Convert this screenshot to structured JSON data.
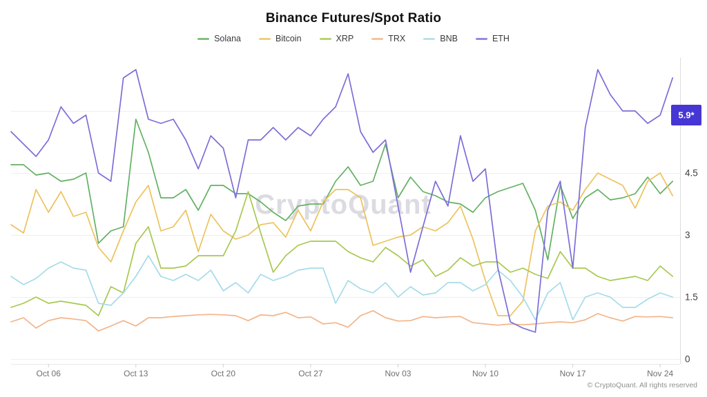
{
  "header": {
    "title": "Binance Futures/Spot Ratio"
  },
  "watermark": {
    "text": "CryptoQuant"
  },
  "footer": {
    "text": "© CryptoQuant. All rights reserved"
  },
  "y_axis": {
    "badge": {
      "label": "5.9*",
      "value": 5.9,
      "color": "#4636d4",
      "text_color": "#ffffff"
    },
    "ticks": [
      {
        "label": "4.5",
        "value": 4.5
      },
      {
        "label": "3",
        "value": 3
      },
      {
        "label": "1.5",
        "value": 1.5
      },
      {
        "label": "0",
        "value": 0
      }
    ]
  },
  "chart_data": {
    "type": "line",
    "title": "Binance Futures/Spot Ratio",
    "xlabel": "",
    "ylabel": "",
    "ylim": [
      0,
      7.35
    ],
    "grid_values": [
      0,
      1.5,
      3,
      4.5,
      6
    ],
    "legend_position": "top",
    "x": [
      "Oct 03",
      "Oct 04",
      "Oct 05",
      "Oct 06",
      "Oct 07",
      "Oct 08",
      "Oct 09",
      "Oct 10",
      "Oct 11",
      "Oct 12",
      "Oct 13",
      "Oct 14",
      "Oct 15",
      "Oct 16",
      "Oct 17",
      "Oct 18",
      "Oct 19",
      "Oct 20",
      "Oct 21",
      "Oct 22",
      "Oct 23",
      "Oct 24",
      "Oct 25",
      "Oct 26",
      "Oct 27",
      "Oct 28",
      "Oct 29",
      "Oct 30",
      "Oct 31",
      "Nov 01",
      "Nov 02",
      "Nov 03",
      "Nov 04",
      "Nov 05",
      "Nov 06",
      "Nov 07",
      "Nov 08",
      "Nov 09",
      "Nov 10",
      "Nov 11",
      "Nov 12",
      "Nov 13",
      "Nov 14",
      "Nov 15",
      "Nov 16",
      "Nov 17",
      "Nov 18",
      "Nov 19",
      "Nov 20",
      "Nov 21",
      "Nov 22",
      "Nov 23",
      "Nov 24",
      "Nov 25"
    ],
    "xticks": [
      {
        "label": "Oct 06",
        "index": 3
      },
      {
        "label": "Oct 13",
        "index": 10
      },
      {
        "label": "Oct 20",
        "index": 17
      },
      {
        "label": "Oct 27",
        "index": 24
      },
      {
        "label": "Nov 03",
        "index": 31
      },
      {
        "label": "Nov 10",
        "index": 38
      },
      {
        "label": "Nov 17",
        "index": 45
      },
      {
        "label": "Nov 24",
        "index": 52
      }
    ],
    "series": [
      {
        "name": "Solana",
        "color": "#62b062",
        "values": [
          4.7,
          4.7,
          4.45,
          4.5,
          4.3,
          4.35,
          4.5,
          2.8,
          3.1,
          3.2,
          5.8,
          5.0,
          3.9,
          3.9,
          4.1,
          3.6,
          4.2,
          4.2,
          4.0,
          4.0,
          3.8,
          3.55,
          3.35,
          3.7,
          3.75,
          3.75,
          4.3,
          4.65,
          4.2,
          4.3,
          5.2,
          3.9,
          4.4,
          4.05,
          3.95,
          3.8,
          3.75,
          3.55,
          3.9,
          4.05,
          4.15,
          4.25,
          3.6,
          2.4,
          4.2,
          3.4,
          3.9,
          4.1,
          3.85,
          3.9,
          4.0,
          4.4,
          4.0,
          4.3
        ]
      },
      {
        "name": "Bitcoin",
        "color": "#ecc25c",
        "values": [
          3.25,
          3.05,
          4.1,
          3.55,
          4.05,
          3.45,
          3.55,
          2.7,
          2.35,
          3.1,
          3.8,
          4.2,
          3.1,
          3.2,
          3.6,
          2.6,
          3.5,
          3.1,
          2.9,
          3.0,
          3.25,
          3.3,
          2.95,
          3.6,
          3.1,
          3.8,
          4.1,
          4.1,
          3.9,
          2.75,
          2.85,
          2.95,
          3.0,
          3.2,
          3.1,
          3.3,
          3.7,
          2.9,
          1.9,
          1.05,
          1.05,
          1.4,
          3.1,
          3.7,
          3.8,
          3.6,
          4.1,
          4.5,
          4.35,
          4.2,
          3.65,
          4.3,
          4.5,
          3.95
        ]
      },
      {
        "name": "XRP",
        "color": "#a6c84f",
        "values": [
          1.25,
          1.35,
          1.5,
          1.35,
          1.4,
          1.35,
          1.3,
          1.05,
          1.75,
          1.6,
          2.8,
          3.2,
          2.2,
          2.2,
          2.25,
          2.5,
          2.5,
          2.5,
          3.1,
          4.05,
          3.05,
          2.1,
          2.5,
          2.75,
          2.85,
          2.85,
          2.85,
          2.6,
          2.45,
          2.35,
          2.7,
          2.5,
          2.25,
          2.4,
          2.0,
          2.15,
          2.45,
          2.25,
          2.35,
          2.35,
          2.1,
          2.2,
          2.05,
          1.95,
          2.6,
          2.2,
          2.2,
          2.0,
          1.9,
          1.95,
          2.0,
          1.9,
          2.25,
          2.0
        ]
      },
      {
        "name": "TRX",
        "color": "#f2b488",
        "values": [
          0.9,
          1.0,
          0.75,
          0.93,
          1.0,
          0.97,
          0.93,
          0.68,
          0.8,
          0.93,
          0.8,
          1.0,
          1.0,
          1.03,
          1.05,
          1.07,
          1.08,
          1.07,
          1.05,
          0.93,
          1.07,
          1.05,
          1.13,
          1.0,
          1.02,
          0.85,
          0.88,
          0.77,
          1.05,
          1.17,
          1.0,
          0.92,
          0.93,
          1.03,
          1.0,
          1.02,
          1.03,
          0.88,
          0.85,
          0.82,
          0.85,
          0.83,
          0.85,
          0.88,
          0.9,
          0.88,
          0.95,
          1.1,
          1.0,
          0.92,
          1.03,
          1.02,
          1.03,
          1.0
        ]
      },
      {
        "name": "BNB",
        "color": "#a5dbe9",
        "values": [
          2.0,
          1.8,
          1.95,
          2.2,
          2.35,
          2.2,
          2.15,
          1.35,
          1.3,
          1.6,
          2.0,
          2.5,
          2.0,
          1.9,
          2.05,
          1.9,
          2.15,
          1.65,
          1.85,
          1.6,
          2.05,
          1.9,
          2.0,
          2.15,
          2.2,
          2.2,
          1.35,
          1.9,
          1.7,
          1.6,
          1.85,
          1.5,
          1.75,
          1.55,
          1.6,
          1.85,
          1.85,
          1.65,
          1.8,
          2.15,
          1.9,
          1.5,
          0.95,
          1.6,
          1.85,
          0.95,
          1.5,
          1.6,
          1.5,
          1.25,
          1.25,
          1.45,
          1.6,
          1.5
        ]
      },
      {
        "name": "ETH",
        "color": "#7b6dd8",
        "values": [
          5.5,
          5.2,
          4.9,
          5.3,
          6.1,
          5.7,
          5.9,
          4.5,
          4.3,
          6.8,
          7.0,
          5.8,
          5.7,
          5.8,
          5.3,
          4.6,
          5.4,
          5.1,
          3.9,
          5.3,
          5.3,
          5.6,
          5.3,
          5.6,
          5.4,
          5.8,
          6.1,
          6.9,
          5.5,
          5.0,
          5.3,
          3.7,
          2.1,
          3.2,
          4.3,
          3.7,
          5.4,
          4.3,
          4.6,
          2.2,
          0.9,
          0.75,
          0.65,
          3.6,
          4.3,
          2.2,
          5.6,
          7.0,
          6.4,
          6.0,
          6.0,
          5.7,
          5.9,
          6.8
        ]
      }
    ]
  }
}
